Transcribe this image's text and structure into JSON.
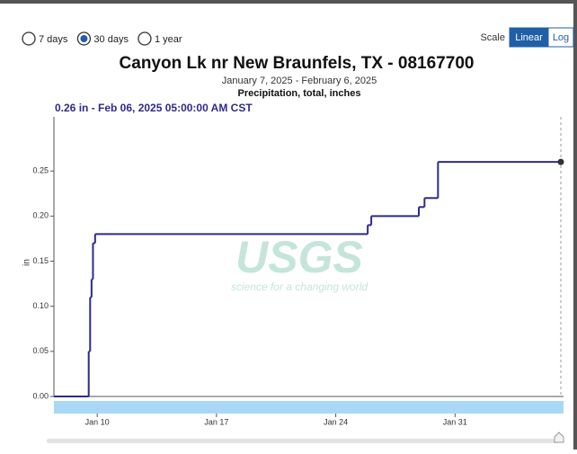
{
  "chart_data": {
    "type": "step",
    "periods": [
      "7 days",
      "30 days",
      "1 year"
    ],
    "selected_period": "30 days",
    "scale_label": "Scale",
    "scales": [
      "Linear",
      "Log"
    ],
    "selected_scale": "Linear",
    "title": "Canyon Lk nr New Braunfels, TX - 08167700",
    "subtitle": "January 7, 2025 - February 6, 2025",
    "parameter": "Precipitation, total, inches",
    "tooltip": "0.26 in - Feb 06, 2025 05:00:00 AM CST",
    "watermark": "USGS",
    "watermark_tagline": "science for a changing world",
    "ylabel": "in",
    "color": "#2e2a8c",
    "x": [
      "2025-01-07T11:00",
      "2025-01-09T11:00",
      "2025-01-09T12:00",
      "2025-01-09T14:00",
      "2025-01-09T16:00",
      "2025-01-09T18:00",
      "2025-01-09T21:00",
      "2025-01-25T21:00",
      "2025-01-26T02:00",
      "2025-01-28T21:00",
      "2025-01-29T05:00",
      "2025-01-30T00:00",
      "2025-02-06T05:00"
    ],
    "values": [
      0,
      0,
      0.05,
      0.11,
      0.13,
      0.17,
      0.18,
      0.19,
      0.2,
      0.21,
      0.22,
      0.26,
      0.26
    ],
    "xlim": [
      "2025-01-07T11:00",
      "2025-02-06T05:00"
    ],
    "xticks": [
      {
        "value": "2025-01-10",
        "label": "Jan 10"
      },
      {
        "value": "2025-01-17",
        "label": "Jan 17"
      },
      {
        "value": "2025-01-24",
        "label": "Jan 24"
      },
      {
        "value": "2025-01-31",
        "label": "Jan 31"
      }
    ],
    "ylim": [
      0,
      0.31
    ],
    "yticks": [
      {
        "value": 0,
        "label": "0.00"
      },
      0.05,
      {
        "value": 0.1,
        "label": "0.10"
      },
      0.15,
      {
        "value": 0.2,
        "label": "0.20"
      },
      0.25
    ],
    "grid": false
  }
}
